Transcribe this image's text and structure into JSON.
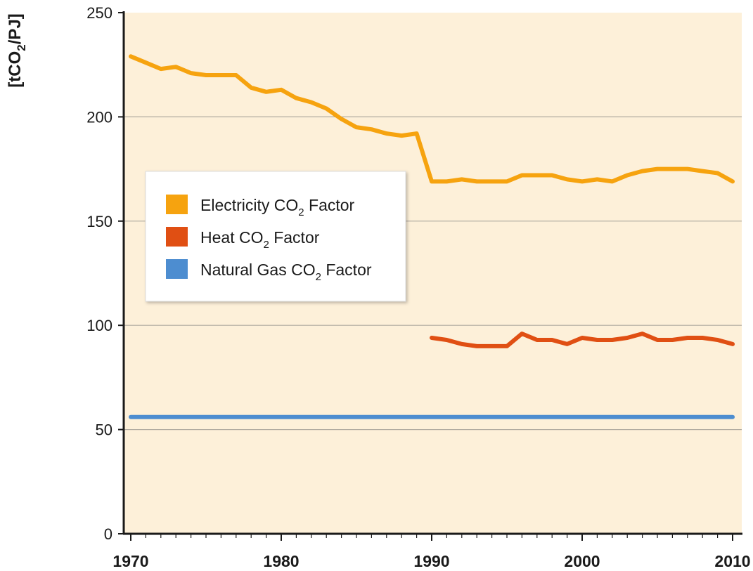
{
  "chart_data": {
    "type": "line",
    "title": "",
    "xlabel": "",
    "ylabel": "[tCO2/PJ]",
    "ylabel_parts": {
      "pre": "[tCO",
      "sub": "2",
      "post": "/PJ]"
    },
    "xlim": [
      1970,
      2010
    ],
    "ylim": [
      0,
      250
    ],
    "x_ticks": [
      1970,
      1980,
      1990,
      2000,
      2010
    ],
    "y_ticks": [
      0,
      50,
      100,
      150,
      200,
      250
    ],
    "grid": "horizontal",
    "legend_position": "middle-left",
    "background": "#fdf0d9",
    "series": [
      {
        "name": "Electricity CO2 Factor",
        "label_parts": {
          "pre": "Electricity  CO",
          "sub": "2",
          "post": " Factor"
        },
        "color": "#f6a30f",
        "x": [
          1970,
          1971,
          1972,
          1973,
          1974,
          1975,
          1976,
          1977,
          1978,
          1979,
          1980,
          1981,
          1982,
          1983,
          1984,
          1985,
          1986,
          1987,
          1988,
          1989,
          1990,
          1991,
          1992,
          1993,
          1994,
          1995,
          1996,
          1997,
          1998,
          1999,
          2000,
          2001,
          2002,
          2003,
          2004,
          2005,
          2006,
          2007,
          2008,
          2009,
          2010
        ],
        "values": [
          229,
          226,
          223,
          224,
          221,
          220,
          220,
          220,
          214,
          212,
          213,
          209,
          207,
          204,
          199,
          195,
          194,
          192,
          191,
          192,
          169,
          169,
          170,
          169,
          169,
          169,
          172,
          172,
          172,
          170,
          169,
          170,
          169,
          172,
          174,
          175,
          175,
          175,
          174,
          173,
          169
        ]
      },
      {
        "name": "Heat CO2 Factor",
        "label_parts": {
          "pre": "Heat  CO",
          "sub": "2",
          "post": " Factor"
        },
        "color": "#e04f13",
        "x": [
          1990,
          1991,
          1992,
          1993,
          1994,
          1995,
          1996,
          1997,
          1998,
          1999,
          2000,
          2001,
          2002,
          2003,
          2004,
          2005,
          2006,
          2007,
          2008,
          2009,
          2010
        ],
        "values": [
          94,
          93,
          91,
          90,
          90,
          90,
          96,
          93,
          93,
          91,
          94,
          93,
          93,
          94,
          96,
          93,
          93,
          94,
          94,
          93,
          91
        ]
      },
      {
        "name": "Natural Gas CO2 Factor",
        "label_parts": {
          "pre": "Natural Gas  CO",
          "sub": "2",
          "post": " Factor"
        },
        "color": "#4d8dd0",
        "x": [
          1970,
          2010
        ],
        "values": [
          56,
          56
        ]
      }
    ]
  }
}
